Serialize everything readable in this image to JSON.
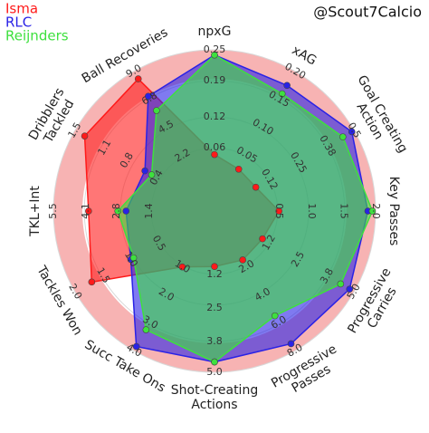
{
  "chart_data": {
    "type": "radar",
    "watermark": "@Scout7Calcio",
    "params": [
      [
        "npxG"
      ],
      [
        "xAG"
      ],
      [
        "Goal Creating",
        "Action"
      ],
      [
        "Key Passes"
      ],
      [
        "Progressive",
        "Carries"
      ],
      [
        "Progressive",
        "Passes"
      ],
      [
        "Shot-Creating",
        "Actions"
      ],
      [
        "Succ Take Ons"
      ],
      [
        "Tackles Won"
      ],
      [
        "TKL+Int"
      ],
      [
        "Dribblers",
        "Tackled"
      ],
      [
        "Ball Recoveries"
      ]
    ],
    "ranges": [
      [
        0,
        0.25
      ],
      [
        0,
        0.2
      ],
      [
        0,
        0.5
      ],
      [
        0,
        2
      ],
      [
        0,
        5
      ],
      [
        0,
        8
      ],
      [
        0,
        5
      ],
      [
        0,
        4
      ],
      [
        0,
        2
      ],
      [
        0,
        5.5
      ],
      [
        0,
        1.5
      ],
      [
        0,
        9
      ]
    ],
    "ticks": [
      [
        0.06,
        0.12,
        0.19,
        0.25
      ],
      [
        0.05,
        {
          "value": 0.1,
          "label": "0.10"
        },
        0.15,
        {
          "value": 0.2,
          "label": "0.20"
        }
      ],
      [
        0.12,
        0.25,
        0.38,
        0.5
      ],
      [
        0.5,
        {
          "value": 1,
          "label": "1.0"
        },
        1.5,
        {
          "value": 2,
          "label": "2.0"
        }
      ],
      [
        1.2,
        2.5,
        3.8,
        {
          "value": 5,
          "label": "5.0"
        }
      ],
      [
        {
          "value": 2,
          "label": "2.0"
        },
        {
          "value": 4,
          "label": "4.0"
        },
        {
          "value": 6,
          "label": "6.0"
        },
        {
          "value": 8,
          "label": "8.0"
        }
      ],
      [
        1.2,
        2.5,
        3.8,
        {
          "value": 5,
          "label": "5.0"
        }
      ],
      [
        {
          "value": 1,
          "label": "1.0"
        },
        {
          "value": 2,
          "label": "2.0"
        },
        {
          "value": 3,
          "label": "3.0"
        },
        {
          "value": 4,
          "label": "4.0"
        }
      ],
      [
        0.5,
        {
          "value": 1,
          "label": "1.0"
        },
        1.5,
        {
          "value": 2,
          "label": "2.0"
        }
      ],
      [
        1.4,
        2.8,
        4.1,
        5.5
      ],
      [
        0.4,
        0.8,
        1.1,
        1.5
      ],
      [
        2.2,
        4.5,
        6.8,
        {
          "value": 9,
          "label": "9.0"
        }
      ]
    ],
    "series": [
      {
        "name": "Isma",
        "color": "#ff1a1a",
        "values": [
          0.047,
          0.025,
          0.06,
          0.5,
          0.9,
          1.5,
          0.9,
          1.0,
          1.7,
          4.0,
          1.37,
          8.4
        ]
      },
      {
        "name": "RLC",
        "color": "#2a22e6",
        "values": [
          0.24,
          0.175,
          0.49,
          1.88,
          4.8,
          7.5,
          4.6,
          3.85,
          1.0,
          2.4,
          0.56,
          7.0
        ]
      },
      {
        "name": "Reijnders",
        "color": "#3ee03e",
        "values": [
          0.24,
          0.16,
          0.45,
          1.95,
          4.4,
          5.5,
          4.6,
          3.25,
          0.95,
          2.75,
          0.47,
          5.85
        ]
      }
    ]
  }
}
